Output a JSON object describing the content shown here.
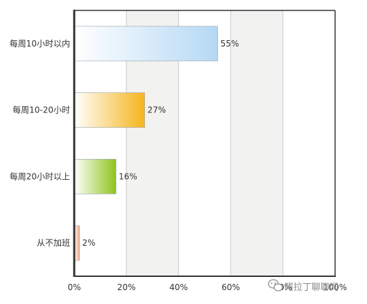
{
  "chart_data": {
    "type": "bar",
    "orientation": "horizontal",
    "categories": [
      "每周10小时以内",
      "每周10-20小时",
      "每周20小时以上",
      "从不加班"
    ],
    "values": [
      55,
      27,
      16,
      2
    ],
    "value_labels": [
      "55%",
      "27%",
      "16%",
      "2%"
    ],
    "x_ticks": [
      "0%",
      "20%",
      "40%",
      "60%",
      "80%",
      "100%"
    ],
    "xlim": [
      0,
      100
    ],
    "grid": true,
    "colors": {
      "bars": [
        "#b5d8f5",
        "#f5b51d",
        "#8dc31d",
        "#f0a888"
      ],
      "background_band": "#f2f2f0",
      "axis": "#333333",
      "grid": "#c8c8c8"
    }
  },
  "watermark": {
    "icon": "wechat-icon",
    "text": "阿拉丁聊聊网"
  }
}
